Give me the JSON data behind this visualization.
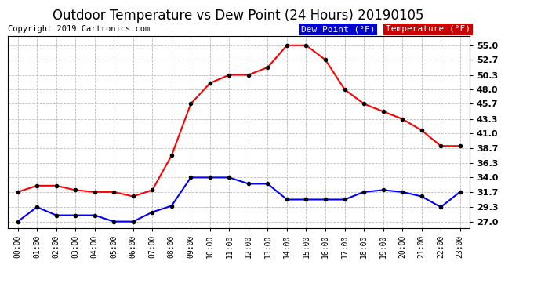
{
  "title": "Outdoor Temperature vs Dew Point (24 Hours) 20190105",
  "copyright": "Copyright 2019 Cartronics.com",
  "hours": [
    "00:00",
    "01:00",
    "02:00",
    "03:00",
    "04:00",
    "05:00",
    "06:00",
    "07:00",
    "08:00",
    "09:00",
    "10:00",
    "11:00",
    "12:00",
    "13:00",
    "14:00",
    "15:00",
    "16:00",
    "17:00",
    "18:00",
    "19:00",
    "20:00",
    "21:00",
    "22:00",
    "23:00"
  ],
  "temperature": [
    31.7,
    32.7,
    32.7,
    32.0,
    31.7,
    31.7,
    31.0,
    32.0,
    37.5,
    45.7,
    49.0,
    50.3,
    50.3,
    51.5,
    55.0,
    55.0,
    52.7,
    48.0,
    45.7,
    44.5,
    43.3,
    41.5,
    39.0,
    39.0
  ],
  "dew_point": [
    27.0,
    29.3,
    28.0,
    28.0,
    28.0,
    27.0,
    27.0,
    28.5,
    29.5,
    34.0,
    34.0,
    34.0,
    33.0,
    33.0,
    30.5,
    30.5,
    30.5,
    30.5,
    31.7,
    32.0,
    31.7,
    31.0,
    29.3,
    31.7
  ],
  "temp_color": "#ff0000",
  "dew_color": "#0000ff",
  "background_color": "#ffffff",
  "grid_color": "#bbbbbb",
  "yticks": [
    27.0,
    29.3,
    31.7,
    34.0,
    36.3,
    38.7,
    41.0,
    43.3,
    45.7,
    48.0,
    50.3,
    52.7,
    55.0
  ],
  "ylim": [
    26.0,
    56.5
  ],
  "title_fontsize": 12,
  "copyright_fontsize": 7.5,
  "marker_size": 3,
  "line_width": 1.5,
  "legend_dew_label": "Dew Point (°F)",
  "legend_temp_label": "Temperature (°F)",
  "legend_dew_color": "#0000cc",
  "legend_temp_color": "#cc0000"
}
